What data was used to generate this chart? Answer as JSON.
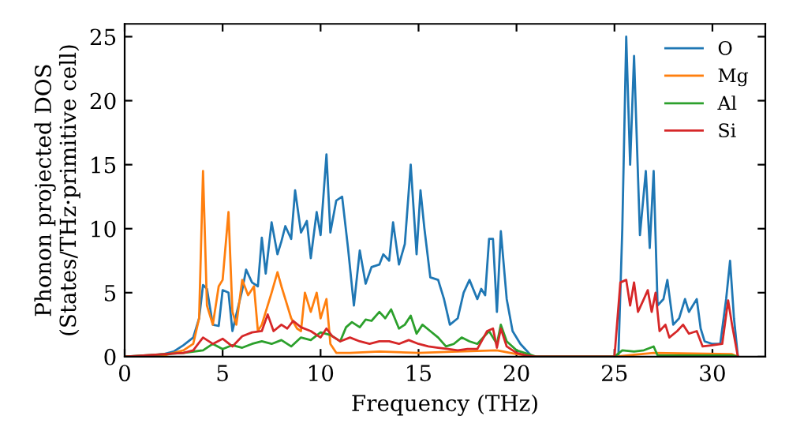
{
  "chart_data": {
    "type": "line",
    "xlabel": "Frequency (THz)",
    "ylabel": "Phonon projected DOS\n(States/THz·primitive cell)",
    "xlim": [
      0,
      32.7
    ],
    "ylim": [
      0,
      26
    ],
    "xticks": [
      0,
      5,
      10,
      15,
      20,
      25,
      30
    ],
    "yticks": [
      0,
      5,
      10,
      15,
      20,
      25
    ],
    "legend": "top right",
    "grid": false,
    "series": [
      {
        "name": "O",
        "color": "#1f77b4",
        "x": [
          0,
          1,
          2,
          2.5,
          3,
          3.5,
          3.8,
          4.0,
          4.2,
          4.5,
          4.8,
          5.0,
          5.3,
          5.5,
          5.7,
          6.0,
          6.2,
          6.5,
          6.8,
          7.0,
          7.2,
          7.5,
          7.8,
          8.0,
          8.2,
          8.5,
          8.7,
          9.0,
          9.3,
          9.5,
          9.8,
          10.0,
          10.3,
          10.5,
          10.8,
          11.1,
          11.4,
          11.7,
          12.0,
          12.3,
          12.6,
          13.0,
          13.2,
          13.5,
          13.7,
          14.0,
          14.3,
          14.6,
          14.9,
          15.1,
          15.3,
          15.6,
          16.0,
          16.3,
          16.6,
          17.0,
          17.3,
          17.6,
          18.0,
          18.2,
          18.4,
          18.6,
          18.8,
          19.0,
          19.2,
          19.5,
          19.8,
          20.2,
          20.8,
          25.2,
          25.4,
          25.6,
          25.8,
          26.0,
          26.3,
          26.6,
          26.8,
          27.0,
          27.2,
          27.5,
          27.7,
          28.0,
          28.3,
          28.6,
          28.8,
          29.0,
          29.2,
          29.4,
          29.6,
          30.0,
          30.4,
          30.7,
          30.9,
          31.1,
          31.3
        ],
        "values": [
          0,
          0.05,
          0.2,
          0.4,
          0.9,
          1.5,
          3,
          5.6,
          5.3,
          2.5,
          2.4,
          5.2,
          5.0,
          2.0,
          3.3,
          5.2,
          6.8,
          5.8,
          5.5,
          9.3,
          6.5,
          10.5,
          8.0,
          9.0,
          10.2,
          9.2,
          13.0,
          9.7,
          10.6,
          7.7,
          11.3,
          9.5,
          15.8,
          9.7,
          12.2,
          12.5,
          8.5,
          4.0,
          8.3,
          5.7,
          7.0,
          7.2,
          8.0,
          7.5,
          10.5,
          7.2,
          8.8,
          15.0,
          8.0,
          13.0,
          10.0,
          6.2,
          6.0,
          4.5,
          2.5,
          3.0,
          5.0,
          6.0,
          4.5,
          5.3,
          4.8,
          9.2,
          9.2,
          3.5,
          9.8,
          4.5,
          2.0,
          1.0,
          0,
          0,
          10,
          25,
          15,
          23.5,
          9.5,
          14.5,
          8.5,
          14.5,
          4.0,
          4.5,
          6.0,
          2.5,
          3.0,
          4.5,
          3.5,
          4.0,
          4.5,
          2.2,
          1.2,
          1.0,
          1.0,
          4.5,
          7.5,
          3,
          0
        ]
      },
      {
        "name": "Mg",
        "color": "#ff7f0e",
        "x": [
          0,
          2,
          3,
          3.5,
          3.8,
          4.0,
          4.2,
          4.5,
          4.8,
          5.0,
          5.3,
          5.5,
          5.7,
          6.0,
          6.3,
          6.6,
          6.8,
          7.0,
          7.2,
          7.5,
          7.8,
          8.0,
          8.2,
          8.5,
          8.8,
          9.0,
          9.2,
          9.5,
          9.8,
          10.0,
          10.3,
          10.5,
          10.8,
          11.5,
          13,
          15,
          17,
          19,
          20,
          21,
          25,
          27,
          31,
          31.3
        ],
        "values": [
          0,
          0.1,
          0.5,
          1.0,
          3.0,
          14.5,
          4.0,
          2.5,
          5.5,
          6.0,
          11.3,
          3.5,
          2.5,
          6.0,
          4.8,
          5.5,
          2.0,
          2.5,
          3.5,
          5.0,
          6.6,
          5.5,
          4.5,
          3.0,
          2.2,
          2.0,
          5.0,
          3.5,
          5.0,
          3.0,
          4.5,
          1.0,
          0.3,
          0.3,
          0.4,
          0.3,
          0.4,
          0.5,
          0.2,
          0,
          0,
          0.3,
          0.2,
          0
        ]
      },
      {
        "name": "Al",
        "color": "#2ca02c",
        "x": [
          0,
          3,
          4,
          4.5,
          5,
          5.5,
          6,
          6.5,
          7,
          7.5,
          8,
          8.5,
          9,
          9.5,
          10,
          10.5,
          11,
          11.3,
          11.6,
          12,
          12.3,
          12.6,
          13,
          13.3,
          13.6,
          14,
          14.3,
          14.6,
          14.9,
          15.2,
          15.6,
          16.0,
          16.4,
          16.8,
          17.2,
          17.6,
          18.0,
          18.6,
          19.0,
          19.2,
          19.5,
          20,
          20.6,
          21,
          25,
          25.4,
          26,
          26.5,
          27,
          27.2,
          28,
          31,
          31.3
        ],
        "values": [
          0,
          0.3,
          0.5,
          1.0,
          0.6,
          0.9,
          0.7,
          1.0,
          1.2,
          1.0,
          1.3,
          0.8,
          1.5,
          1.3,
          1.9,
          1.7,
          1.2,
          2.3,
          2.7,
          2.3,
          2.9,
          2.8,
          3.5,
          3.0,
          3.7,
          2.2,
          2.5,
          3.2,
          1.8,
          2.5,
          2.0,
          1.5,
          0.8,
          1.0,
          1.5,
          1.2,
          1.0,
          2.0,
          1.0,
          2.5,
          1.2,
          0.5,
          0.2,
          0,
          0,
          0.5,
          0.4,
          0.5,
          0.8,
          0.1,
          0.1,
          0.1,
          0
        ]
      },
      {
        "name": "Si",
        "color": "#d62728",
        "x": [
          0,
          3,
          3.5,
          4,
          4.5,
          5,
          5.5,
          6,
          6.5,
          7,
          7.3,
          7.6,
          8,
          8.3,
          8.6,
          9,
          9.5,
          10,
          10.3,
          10.6,
          11,
          11.5,
          12,
          12.5,
          13,
          13.5,
          14,
          14.5,
          15,
          15.5,
          16,
          16.5,
          17,
          17.5,
          18,
          18.5,
          18.8,
          19,
          19.2,
          19.5,
          20,
          20.5,
          21,
          25,
          25.3,
          25.6,
          25.8,
          26.0,
          26.2,
          26.5,
          26.7,
          26.9,
          27.1,
          27.3,
          27.6,
          27.8,
          28.2,
          28.5,
          28.8,
          29.2,
          29.5,
          30,
          30.5,
          30.8,
          31.0,
          31.3
        ],
        "values": [
          0,
          0.3,
          0.5,
          1.5,
          1.0,
          1.4,
          0.8,
          1.6,
          1.9,
          2.0,
          3.3,
          2.0,
          2.5,
          2.2,
          2.8,
          2.3,
          2.0,
          1.5,
          2.2,
          1.6,
          1.2,
          1.5,
          1.2,
          1.0,
          1.2,
          1.2,
          1.0,
          1.3,
          1.0,
          0.8,
          0.7,
          0.6,
          0.5,
          0.6,
          0.6,
          2.0,
          2.2,
          0.7,
          2.2,
          0.8,
          0.3,
          0.1,
          0,
          0,
          5.8,
          6.0,
          4.0,
          5.8,
          3.5,
          4.5,
          5.2,
          3.5,
          5.0,
          2.0,
          2.5,
          1.5,
          2.0,
          2.5,
          1.8,
          2.0,
          0.8,
          0.9,
          1.0,
          4.4,
          2.5,
          0
        ]
      }
    ]
  }
}
